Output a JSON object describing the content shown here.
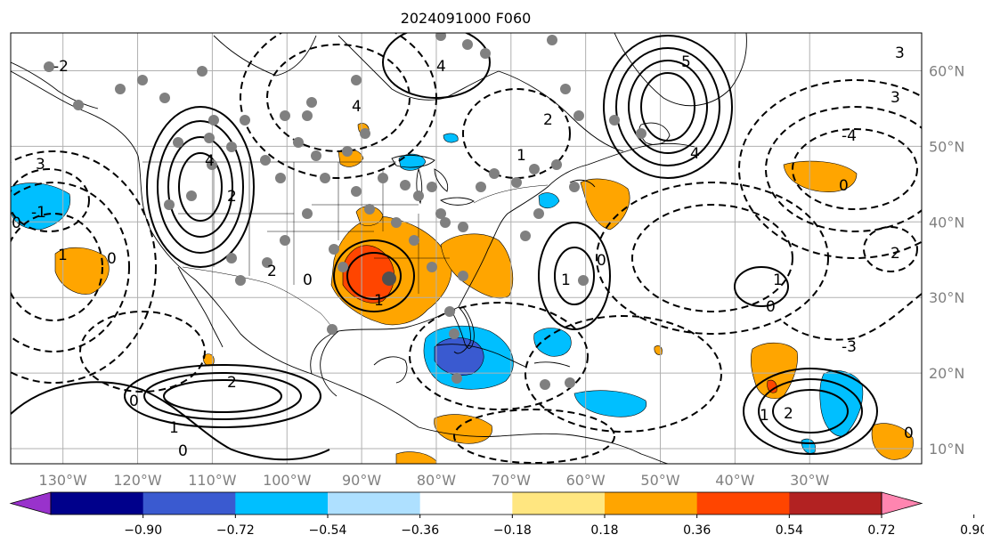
{
  "chart_data": {
    "type": "contour",
    "title": "2024091000 F060",
    "map": {
      "projection": "lat-lon",
      "lon_range": [
        -137,
        -15
      ],
      "lat_range": [
        8,
        65
      ],
      "x_ticks": [
        {
          "value": -130,
          "label": "130°W"
        },
        {
          "value": -120,
          "label": "120°W"
        },
        {
          "value": -110,
          "label": "110°W"
        },
        {
          "value": -100,
          "label": "100°W"
        },
        {
          "value": -90,
          "label": "90°W"
        },
        {
          "value": -80,
          "label": "80°W"
        },
        {
          "value": -70,
          "label": "70°W"
        },
        {
          "value": -60,
          "label": "60°W"
        },
        {
          "value": -50,
          "label": "50°W"
        },
        {
          "value": -40,
          "label": "40°W"
        },
        {
          "value": -30,
          "label": "30°W"
        }
      ],
      "y_ticks": [
        {
          "value": 60,
          "label": "60°N"
        },
        {
          "value": 50,
          "label": "50°N"
        },
        {
          "value": 40,
          "label": "40°N"
        },
        {
          "value": 30,
          "label": "30°N"
        },
        {
          "value": 20,
          "label": "20°N"
        },
        {
          "value": 10,
          "label": "10°N"
        }
      ],
      "y_tick_side": "right",
      "grid": true,
      "coastlines": true
    },
    "colorbar": {
      "orientation": "horizontal",
      "extend": "both",
      "levels": [
        -0.9,
        -0.72,
        -0.54,
        -0.36,
        -0.18,
        0.18,
        0.36,
        0.54,
        0.72,
        0.9
      ],
      "tick_labels": [
        "−0.90",
        "−0.72",
        "−0.54",
        "−0.36",
        "−0.18",
        "0.18",
        "0.36",
        "0.54",
        "0.72",
        "0.90"
      ],
      "colors": [
        "#9932cc",
        "#00008b",
        "#3a5ad0",
        "#00bfff",
        "#aee0ff",
        "#ffffff",
        "#ffe680",
        "#ffa500",
        "#ff4500",
        "#b22222",
        "#ff85b0"
      ]
    },
    "contour_labels": [
      "0",
      "1",
      "2",
      "3",
      "4",
      "5",
      "-1",
      "-2",
      "-3",
      "-4"
    ]
  }
}
